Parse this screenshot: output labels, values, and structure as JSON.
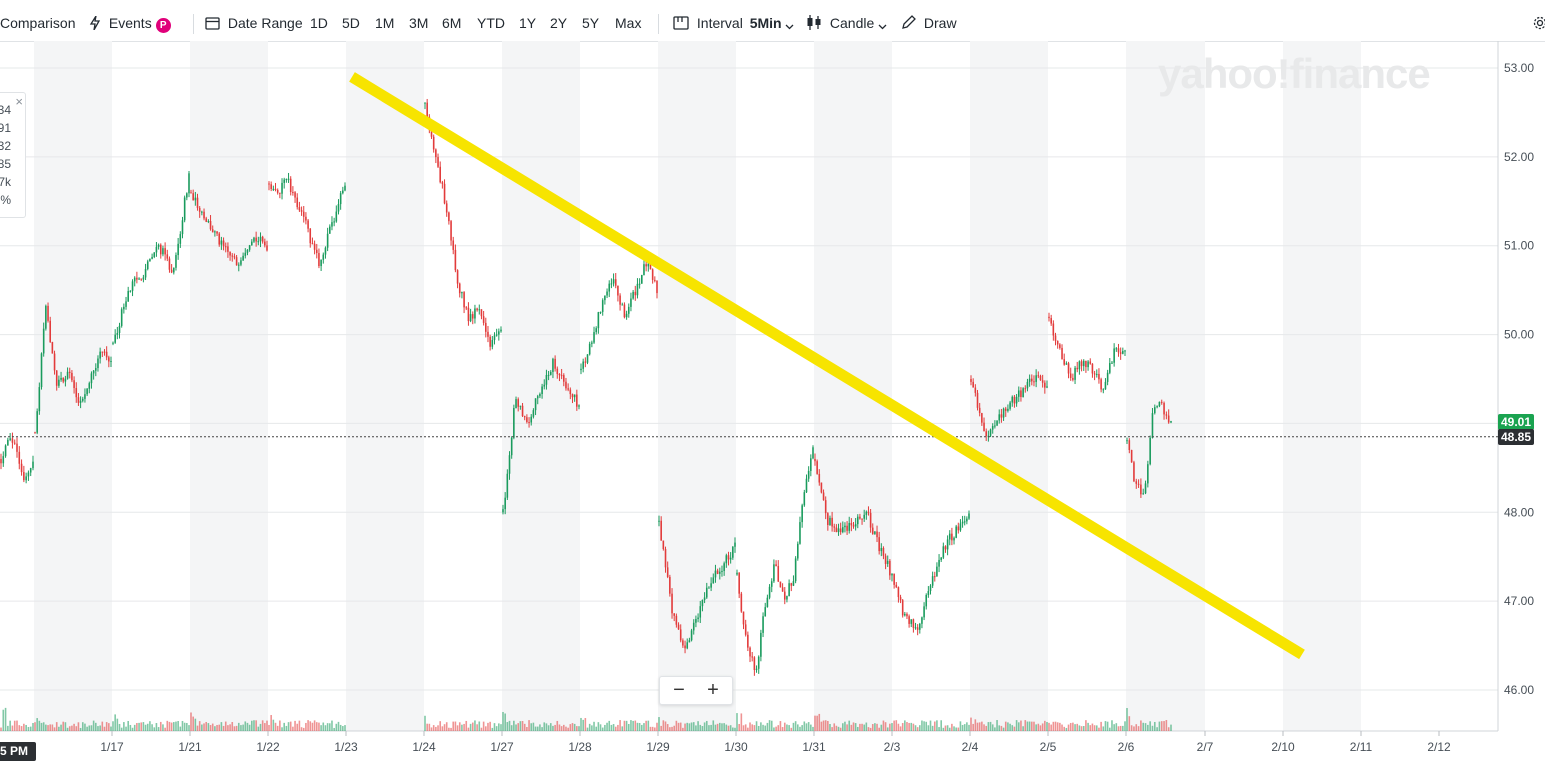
{
  "toolbar": {
    "comparison_label": "Comparison",
    "events_label": "Events",
    "events_badge": "P",
    "date_range_label": "Date Range",
    "ranges": [
      "1D",
      "5D",
      "1M",
      "3M",
      "6M",
      "YTD",
      "1Y",
      "2Y",
      "5Y",
      "Max"
    ],
    "interval_label": "Interval",
    "interval_value": "5Min",
    "chart_type_label": "Candle",
    "draw_label": "Draw"
  },
  "info_box": {
    "values": [
      "34",
      "91",
      "32",
      "85",
      "7k",
      "%"
    ],
    "close_glyph": "×"
  },
  "watermark": "yahoo!finance",
  "zoom": {
    "minus": "−",
    "plus": "+"
  },
  "crosshair_time_label": "5 PM",
  "colors": {
    "up": "#1a9b5d",
    "down": "#e23b3b",
    "trendline": "#f7e400",
    "last_price_bg": "#1aa350",
    "crosshair_bg": "#2c2f33"
  },
  "chart_data": {
    "type": "candlestick",
    "interval": "5Min",
    "ylim": [
      45.55,
      53.05
    ],
    "y_ticks": [
      "53.00",
      "52.00",
      "51.00",
      "50.00",
      "49.00",
      "48.00",
      "47.00",
      "46.00"
    ],
    "x_tick_labels": [
      "1/17",
      "1/21",
      "1/22",
      "1/23",
      "1/24",
      "1/27",
      "1/28",
      "1/29",
      "1/30",
      "1/31",
      "2/3",
      "2/4",
      "2/5",
      "2/6",
      "2/7",
      "2/10",
      "2/11",
      "2/12"
    ],
    "last_price_label": "49.01",
    "crosshair_price_label": "48.85",
    "crosshair_price": 48.85,
    "approx_price_path": [
      {
        "session": "1/16",
        "points": [
          48.6,
          48.9,
          48.7,
          48.35,
          48.55
        ]
      },
      {
        "session": "1/17",
        "points": [
          48.9,
          50.3,
          49.4,
          49.6,
          49.2,
          49.5,
          49.8,
          49.7
        ]
      },
      {
        "session": "1/21",
        "points": [
          49.9,
          50.5,
          50.7,
          51.0,
          50.7,
          51.8
        ]
      },
      {
        "session": "1/22",
        "points": [
          51.6,
          51.3,
          51.0,
          50.8,
          51.1,
          51.0
        ]
      },
      {
        "session": "1/23",
        "points": [
          51.7,
          51.55,
          51.8,
          51.5,
          51.4,
          51.0,
          50.8,
          51.1,
          51.4,
          51.7
        ]
      },
      {
        "session": "1/24",
        "points": [
          52.6,
          52.0,
          51.4,
          50.6,
          50.2,
          50.3,
          49.9,
          50.1
        ]
      },
      {
        "session": "1/27",
        "points": [
          48.0,
          49.3,
          49.0,
          49.4,
          49.7,
          49.4,
          49.2
        ]
      },
      {
        "session": "1/28",
        "points": [
          49.6,
          49.9,
          50.4,
          50.6,
          50.2,
          50.5,
          50.8,
          50.5
        ]
      },
      {
        "session": "1/29",
        "points": [
          47.9,
          46.9,
          46.4,
          46.8,
          47.2,
          47.4,
          47.6
        ]
      },
      {
        "session": "1/30",
        "points": [
          47.3,
          46.5,
          46.2,
          47.0,
          47.4,
          47.0,
          47.3,
          48.2,
          48.7
        ]
      },
      {
        "session": "1/31",
        "points": [
          48.6,
          47.9,
          47.8,
          47.9,
          48.0,
          47.6,
          47.3,
          46.8,
          46.7,
          47.2,
          47.6,
          47.8,
          48.0
        ]
      },
      {
        "session": "2/4",
        "points": [
          49.5,
          48.8,
          49.1,
          49.3,
          49.5,
          49.45
        ]
      },
      {
        "session": "2/5",
        "points": [
          50.2,
          49.8,
          49.5,
          49.7,
          49.6,
          49.4,
          49.8,
          49.85
        ]
      },
      {
        "session": "2/6",
        "points": [
          48.8,
          48.3,
          48.2,
          49.2,
          49.2,
          49.01
        ]
      }
    ],
    "trendline": {
      "x": [
        "1/23",
        "2/10"
      ],
      "y": [
        52.9,
        46.4
      ]
    },
    "volume": "shown as green/red histogram along bottom of chart",
    "grid": true,
    "watermark_present": true
  }
}
